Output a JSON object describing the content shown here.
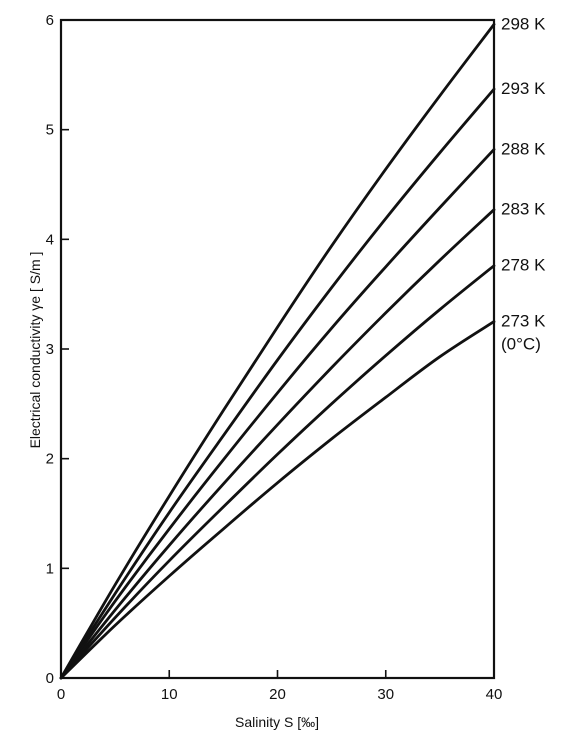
{
  "chart_data": {
    "type": "line",
    "xlabel": "Salinity  S [‰]",
    "ylabel": "Electrical conductivity  γe [ S/m ]",
    "xlim": [
      0,
      40
    ],
    "ylim": [
      0,
      6
    ],
    "xticks": [
      "0",
      "10",
      "20",
      "30",
      "40"
    ],
    "yticks": [
      "0",
      "1",
      "2",
      "3",
      "4",
      "5",
      "6"
    ],
    "grid": false,
    "legend": "right-edge labels",
    "series": [
      {
        "name": "298 K",
        "x": [
          0,
          5,
          10,
          15,
          20,
          25,
          30,
          35,
          40
        ],
        "y": [
          0,
          0.85,
          1.66,
          2.44,
          3.2,
          3.94,
          4.64,
          5.31,
          5.96
        ]
      },
      {
        "name": "293 K",
        "x": [
          0,
          5,
          10,
          15,
          20,
          25,
          30,
          35,
          40
        ],
        "y": [
          0,
          0.77,
          1.51,
          2.21,
          2.9,
          3.56,
          4.19,
          4.79,
          5.37
        ]
      },
      {
        "name": "288 K",
        "x": [
          0,
          5,
          10,
          15,
          20,
          25,
          30,
          35,
          40
        ],
        "y": [
          0,
          0.7,
          1.36,
          1.99,
          2.6,
          3.19,
          3.75,
          4.29,
          4.82
        ]
      },
      {
        "name": "283 K",
        "x": [
          0,
          5,
          10,
          15,
          20,
          25,
          30,
          35,
          40
        ],
        "y": [
          0,
          0.62,
          1.21,
          1.77,
          2.31,
          2.83,
          3.33,
          3.81,
          4.27
        ]
      },
      {
        "name": "278 K",
        "x": [
          0,
          5,
          10,
          15,
          20,
          25,
          30,
          35,
          40
        ],
        "y": [
          0,
          0.55,
          1.07,
          1.56,
          2.04,
          2.5,
          2.94,
          3.36,
          3.76
        ]
      },
      {
        "name": "273 K",
        "name2": "(0°C)",
        "x": [
          0,
          5,
          10,
          15,
          20,
          25,
          30,
          35,
          40
        ],
        "y": [
          0,
          0.48,
          0.93,
          1.36,
          1.78,
          2.18,
          2.56,
          2.93,
          3.25
        ]
      }
    ]
  }
}
